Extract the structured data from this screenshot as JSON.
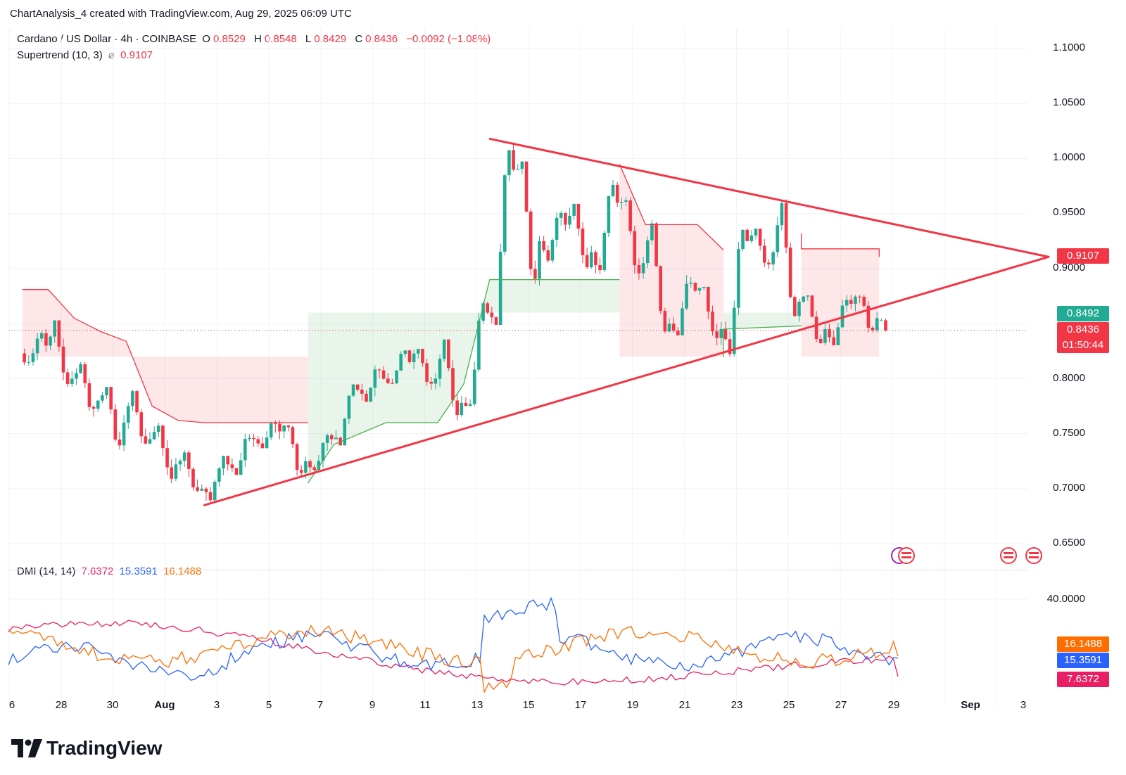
{
  "header": {
    "text": "ChartAnalysis_4 created with TradingView.com, Aug 29, 2025 06:09 UTC"
  },
  "legend": {
    "symbol": "Cardano / US Dollar · 4h · COINBASE",
    "o_label": "O",
    "o_value": "0.8529",
    "h_label": "H",
    "h_value": "0.8548",
    "l_label": "L",
    "l_value": "0.8429",
    "c_label": "C",
    "c_value": "0.8436",
    "change": "−0.0092 (−1.08%)",
    "supertrend_label": "Supertrend (10, 3)",
    "supertrend_symbol": "⌀",
    "supertrend_value": "0.9107"
  },
  "dmi_legend": {
    "label": "DMI (14, 14)",
    "adx": "7.6372",
    "plus_di": "15.3591",
    "minus_di": "16.1488"
  },
  "price_tags": {
    "supertrend": "0.9107",
    "prev_close": "0.8492",
    "last": "0.8436",
    "countdown": "01:50:44",
    "dmi_minus": "16.1488",
    "dmi_plus": "15.3591",
    "dmi_adx": "7.6372"
  },
  "colors": {
    "up": "#22ab94",
    "down": "#f23645",
    "triangle": "#f23645",
    "supertrend_up": "#4caf50",
    "supertrend_down": "#f23645",
    "dmi_plus": "#2962ff",
    "dmi_minus": "#ff6d00",
    "adx": "#e91e63"
  },
  "brand": {
    "name": "TradingView"
  },
  "chart_data": {
    "type": "candlestick",
    "title": "Cardano / US Dollar · 4h · COINBASE",
    "y_ticks": [
      "1.1000",
      "1.0500",
      "1.0000",
      "0.9500",
      "0.9000",
      "0.8000",
      "0.7500",
      "0.7000",
      "0.6500"
    ],
    "x_ticks": [
      "6",
      "28",
      "30",
      "Aug",
      "3",
      "5",
      "7",
      "9",
      "11",
      "13",
      "15",
      "17",
      "19",
      "21",
      "23",
      "25",
      "27",
      "29",
      "Sep",
      "3"
    ],
    "ylim": [
      0.625,
      1.12
    ],
    "last_price": 0.8436,
    "candles_daily_approx": [
      {
        "date": "Jul 27",
        "o": 0.823,
        "h": 0.845,
        "l": 0.812,
        "c": 0.83
      },
      {
        "date": "Jul 28",
        "o": 0.83,
        "h": 0.853,
        "l": 0.79,
        "c": 0.8
      },
      {
        "date": "Jul 29",
        "o": 0.8,
        "h": 0.815,
        "l": 0.765,
        "c": 0.78
      },
      {
        "date": "Jul 30",
        "o": 0.78,
        "h": 0.792,
        "l": 0.732,
        "c": 0.76
      },
      {
        "date": "Jul 31",
        "o": 0.76,
        "h": 0.79,
        "l": 0.735,
        "c": 0.745
      },
      {
        "date": "Aug 1",
        "o": 0.745,
        "h": 0.76,
        "l": 0.705,
        "c": 0.722
      },
      {
        "date": "Aug 2",
        "o": 0.722,
        "h": 0.735,
        "l": 0.696,
        "c": 0.7
      },
      {
        "date": "Aug 3",
        "o": 0.7,
        "h": 0.73,
        "l": 0.688,
        "c": 0.722
      },
      {
        "date": "Aug 4",
        "o": 0.722,
        "h": 0.75,
        "l": 0.715,
        "c": 0.745
      },
      {
        "date": "Aug 5",
        "o": 0.745,
        "h": 0.762,
        "l": 0.738,
        "c": 0.752
      },
      {
        "date": "Aug 6",
        "o": 0.752,
        "h": 0.758,
        "l": 0.709,
        "c": 0.725
      },
      {
        "date": "Aug 7",
        "o": 0.725,
        "h": 0.75,
        "l": 0.715,
        "c": 0.745
      },
      {
        "date": "Aug 8",
        "o": 0.745,
        "h": 0.795,
        "l": 0.742,
        "c": 0.79
      },
      {
        "date": "Aug 9",
        "o": 0.79,
        "h": 0.812,
        "l": 0.78,
        "c": 0.8
      },
      {
        "date": "Aug 10",
        "o": 0.8,
        "h": 0.833,
        "l": 0.795,
        "c": 0.815
      },
      {
        "date": "Aug 11",
        "o": 0.815,
        "h": 0.826,
        "l": 0.79,
        "c": 0.8
      },
      {
        "date": "Aug 12",
        "o": 0.8,
        "h": 0.835,
        "l": 0.762,
        "c": 0.778
      },
      {
        "date": "Aug 13",
        "o": 0.778,
        "h": 0.87,
        "l": 0.775,
        "c": 0.86
      },
      {
        "date": "Aug 14",
        "o": 0.86,
        "h": 1.018,
        "l": 0.85,
        "c": 0.99
      },
      {
        "date": "Aug 15",
        "o": 0.99,
        "h": 0.995,
        "l": 0.877,
        "c": 0.925
      },
      {
        "date": "Aug 16",
        "o": 0.925,
        "h": 0.96,
        "l": 0.905,
        "c": 0.94
      },
      {
        "date": "Aug 17",
        "o": 0.94,
        "h": 0.958,
        "l": 0.898,
        "c": 0.915
      },
      {
        "date": "Aug 18",
        "o": 0.915,
        "h": 0.988,
        "l": 0.895,
        "c": 0.96
      },
      {
        "date": "Aug 19",
        "o": 0.96,
        "h": 0.965,
        "l": 0.89,
        "c": 0.905
      },
      {
        "date": "Aug 20",
        "o": 0.905,
        "h": 0.945,
        "l": 0.838,
        "c": 0.85
      },
      {
        "date": "Aug 21",
        "o": 0.85,
        "h": 0.895,
        "l": 0.842,
        "c": 0.88
      },
      {
        "date": "Aug 22",
        "o": 0.88,
        "h": 0.882,
        "l": 0.83,
        "c": 0.845
      },
      {
        "date": "Aug 23",
        "o": 0.845,
        "h": 0.942,
        "l": 0.82,
        "c": 0.925
      },
      {
        "date": "Aug 24",
        "o": 0.925,
        "h": 0.935,
        "l": 0.895,
        "c": 0.915
      },
      {
        "date": "Aug 25",
        "o": 0.915,
        "h": 0.963,
        "l": 0.85,
        "c": 0.87
      },
      {
        "date": "Aug 26",
        "o": 0.87,
        "h": 0.875,
        "l": 0.827,
        "c": 0.845
      },
      {
        "date": "Aug 27",
        "o": 0.845,
        "h": 0.876,
        "l": 0.832,
        "c": 0.868
      },
      {
        "date": "Aug 28",
        "o": 0.868,
        "h": 0.876,
        "l": 0.842,
        "c": 0.855
      },
      {
        "date": "Aug 29",
        "o": 0.8529,
        "h": 0.8548,
        "l": 0.8429,
        "c": 0.8436
      }
    ],
    "supertrend": {
      "params": "10, 3",
      "segments": [
        {
          "trend": "down",
          "points": [
            [
              "Jul 27",
              0.881
            ],
            [
              "Jul 28",
              0.881
            ],
            [
              "Jul 29",
              0.855
            ],
            [
              "Jul 30",
              0.843
            ],
            [
              "Jul 31",
              0.834
            ],
            [
              "Aug 1",
              0.775
            ],
            [
              "Aug 2",
              0.762
            ],
            [
              "Aug 3",
              0.76
            ],
            [
              "Aug 7",
              0.76
            ]
          ]
        },
        {
          "trend": "up",
          "points": [
            [
              "Aug 7",
              0.705
            ],
            [
              "Aug 8",
              0.74
            ],
            [
              "Aug 9",
              0.75
            ],
            [
              "Aug 10",
              0.76
            ],
            [
              "Aug 12",
              0.76
            ],
            [
              "Aug 13",
              0.795
            ],
            [
              "Aug 14",
              0.89
            ],
            [
              "Aug 19",
              0.89
            ]
          ]
        },
        {
          "trend": "down",
          "points": [
            [
              "Aug 19",
              0.995
            ],
            [
              "Aug 20",
              0.94
            ],
            [
              "Aug 22",
              0.94
            ],
            [
              "Aug 23",
              0.917
            ]
          ]
        },
        {
          "trend": "up",
          "points": [
            [
              "Aug 23",
              0.82
            ],
            [
              "Aug 23",
              0.845
            ],
            [
              "Aug 26",
              0.848
            ]
          ]
        },
        {
          "trend": "down",
          "points": [
            [
              "Aug 26",
              0.932
            ],
            [
              "Aug 26",
              0.918
            ],
            [
              "Aug 29",
              0.918
            ],
            [
              "Aug 29",
              0.9107
            ]
          ]
        }
      ]
    },
    "trendlines": [
      {
        "name": "descending resistance",
        "from": [
          "Aug 14",
          1.018
        ],
        "to": [
          "Sep 4",
          0.9107
        ]
      },
      {
        "name": "ascending support",
        "from": [
          "Aug 3",
          0.685
        ],
        "to": [
          "Sep 4",
          0.9107
        ]
      }
    ],
    "dmi": {
      "params": "14, 14",
      "y_ticks": [
        "40.0000"
      ],
      "series": [
        {
          "name": "ADX",
          "last": 7.6372
        },
        {
          "name": "+DI",
          "last": 15.3591
        },
        {
          "name": "-DI",
          "last": 16.1488
        }
      ]
    }
  }
}
